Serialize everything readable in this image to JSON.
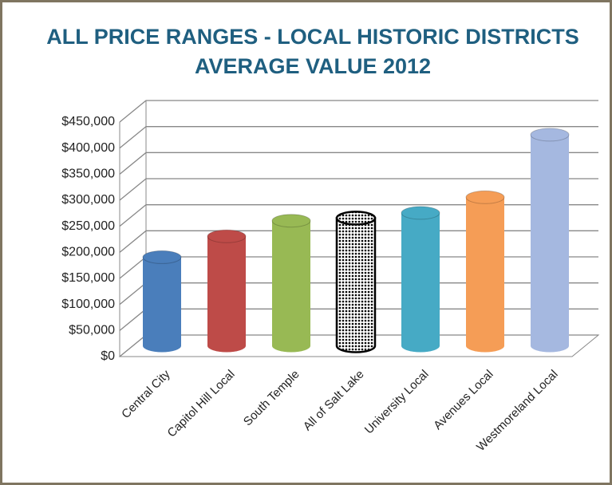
{
  "chart_data": {
    "type": "bar",
    "title": [
      "ALL PRICE RANGES - LOCAL HISTORIC DISTRICTS",
      "AVERAGE VALUE 2012"
    ],
    "categories": [
      "Central City",
      "Capitol Hill Local",
      "South Temple",
      "All of Salt Lake",
      "University Local",
      "Avenues Local",
      "Westmoreland Local"
    ],
    "values": [
      170000,
      210000,
      240000,
      245000,
      255000,
      285000,
      405000
    ],
    "colors": [
      "#4a7ebb",
      "#be4b48",
      "#98b954",
      "dotted",
      "#46aac5",
      "#f59d56",
      "#a5b8e0"
    ],
    "ylim": [
      0,
      450000
    ],
    "yticks": [
      {
        "value": 0,
        "label": "$0"
      },
      {
        "value": 50000,
        "label": "$50,000"
      },
      {
        "value": 100000,
        "label": "$100,000"
      },
      {
        "value": 150000,
        "label": "$150,000"
      },
      {
        "value": 200000,
        "label": "$200,000"
      },
      {
        "value": 250000,
        "label": "$250,000"
      },
      {
        "value": 300000,
        "label": "$300,000"
      },
      {
        "value": 350000,
        "label": "$350,000"
      },
      {
        "value": 400000,
        "label": "$400,000"
      },
      {
        "value": 450000,
        "label": "$450,000"
      }
    ],
    "grid": true
  }
}
